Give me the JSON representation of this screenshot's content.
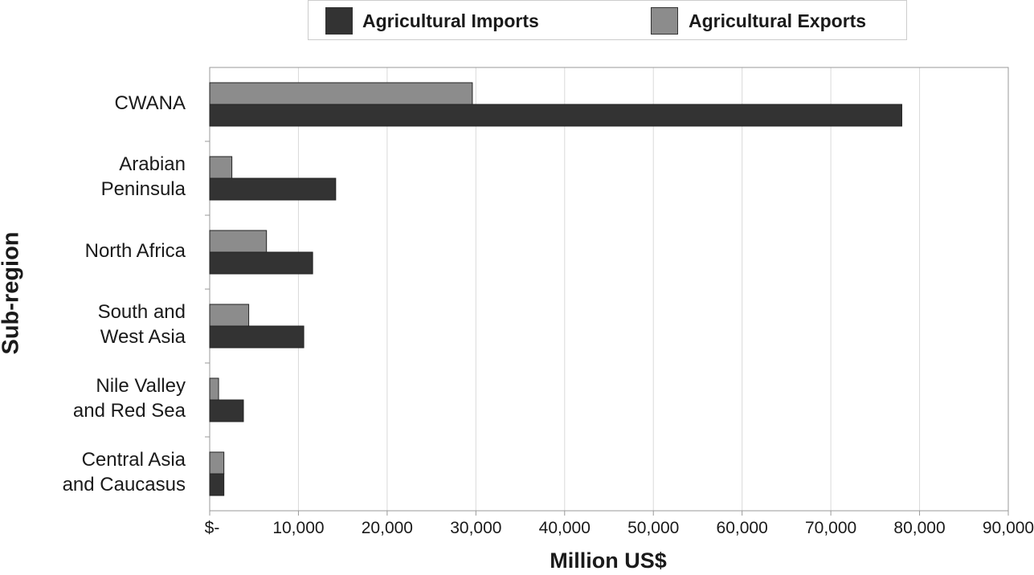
{
  "chart_data": {
    "type": "bar",
    "orientation": "horizontal",
    "categories": [
      [
        "CWANA"
      ],
      [
        "Arabian",
        "Peninsula"
      ],
      [
        "North Africa"
      ],
      [
        "South and",
        "West Asia"
      ],
      [
        "Nile Valley",
        "and Red Sea"
      ],
      [
        "Central Asia",
        "and Caucasus"
      ]
    ],
    "series": [
      {
        "name": "Agricultural Imports",
        "color": "#333333",
        "values": [
          78000,
          14200,
          11600,
          10600,
          3800,
          1600
        ]
      },
      {
        "name": "Agricultural Exports",
        "color": "#8c8c8c",
        "values": [
          29600,
          2500,
          6400,
          4400,
          1000,
          1600
        ]
      }
    ],
    "xlim": [
      0,
      90000
    ],
    "xticks": [
      0,
      10000,
      20000,
      30000,
      40000,
      50000,
      60000,
      70000,
      80000,
      90000
    ],
    "xtick_labels": [
      "$-",
      "10,000",
      "20,000",
      "30,000",
      "40,000",
      "50,000",
      "60,000",
      "70,000",
      "80,000",
      "90,000"
    ],
    "xlabel": "Million US$",
    "ylabel": "Sub-region",
    "grid": true,
    "legend": "top"
  }
}
